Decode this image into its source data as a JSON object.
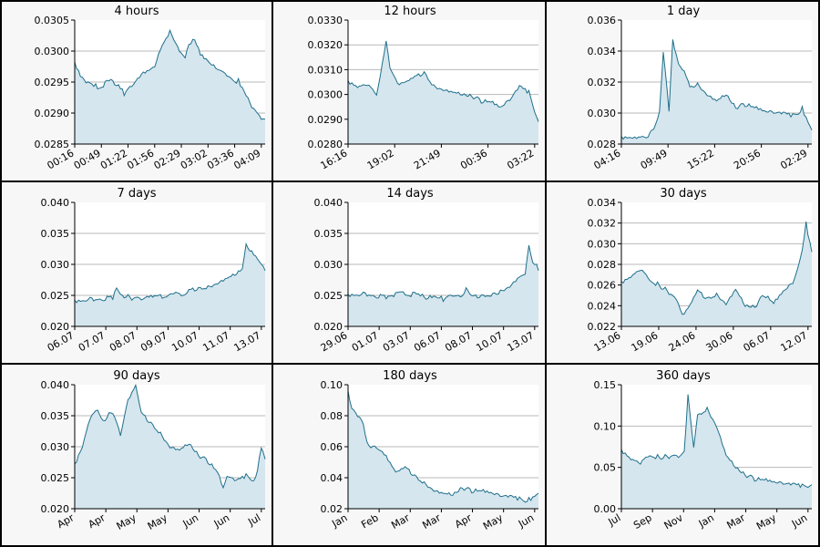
{
  "colors": {
    "line": "#1f6f8b",
    "fill": "#d5e6ee",
    "grid": "#b9b9b9",
    "panel_bg": "#f7f7f7",
    "plot_bg": "#ffffff",
    "text": "#000000"
  },
  "chart_data": [
    {
      "type": "area",
      "title": "4 hours",
      "ylim": [
        0.0285,
        0.0305
      ],
      "yticks": [
        "0.0285",
        "0.0290",
        "0.0295",
        "0.0300",
        "0.0305"
      ],
      "xticks": [
        "00:16",
        "00:49",
        "01:22",
        "01:56",
        "02:29",
        "03:02",
        "03:36",
        "04:09"
      ],
      "grid": true,
      "series": [
        {
          "x": [
            0,
            0.03,
            0.06,
            0.12,
            0.2,
            0.26,
            0.3,
            0.36,
            0.42,
            0.44,
            0.47,
            0.5,
            0.52,
            0.55,
            0.58,
            0.6,
            0.63,
            0.66,
            0.7,
            0.74,
            0.78,
            0.82,
            0.86,
            0.9,
            0.93,
            0.96,
            0.98,
            1.0
          ],
          "y": [
            0.0298,
            0.0296,
            0.0295,
            0.0294,
            0.0295,
            0.0293,
            0.0294,
            0.0296,
            0.0297,
            0.0299,
            0.0301,
            0.0303,
            0.0302,
            0.03,
            0.0299,
            0.0301,
            0.0302,
            0.0299,
            0.0298,
            0.0297,
            0.0296,
            0.0295,
            0.0295,
            0.0293,
            0.0291,
            0.029,
            0.0289,
            0.0289
          ]
        }
      ]
    },
    {
      "type": "area",
      "title": "12 hours",
      "ylim": [
        0.028,
        0.033
      ],
      "yticks": [
        "0.0280",
        "0.0290",
        "0.0300",
        "0.0310",
        "0.0320",
        "0.0330"
      ],
      "xticks": [
        "16:16",
        "19:02",
        "21:49",
        "00:36",
        "03:22"
      ],
      "grid": true,
      "series": [
        {
          "x": [
            0,
            0.05,
            0.1,
            0.15,
            0.18,
            0.2,
            0.22,
            0.26,
            0.3,
            0.35,
            0.4,
            0.45,
            0.5,
            0.55,
            0.6,
            0.65,
            0.7,
            0.75,
            0.8,
            0.85,
            0.9,
            0.95,
            1.0
          ],
          "y": [
            0.0305,
            0.0303,
            0.0304,
            0.03,
            0.0312,
            0.0322,
            0.031,
            0.0303,
            0.0304,
            0.0306,
            0.0308,
            0.0303,
            0.0302,
            0.0301,
            0.03,
            0.0299,
            0.0297,
            0.0296,
            0.0294,
            0.0297,
            0.0302,
            0.03,
            0.0289
          ]
        }
      ]
    },
    {
      "type": "area",
      "title": "1 day",
      "ylim": [
        0.028,
        0.036
      ],
      "yticks": [
        "0.028",
        "0.030",
        "0.032",
        "0.034",
        "0.036"
      ],
      "xticks": [
        "04:16",
        "09:49",
        "15:22",
        "20:56",
        "02:29"
      ],
      "grid": true,
      "series": [
        {
          "x": [
            0,
            0.08,
            0.14,
            0.17,
            0.2,
            0.22,
            0.25,
            0.27,
            0.3,
            0.33,
            0.36,
            0.4,
            0.45,
            0.5,
            0.55,
            0.6,
            0.65,
            0.7,
            0.75,
            0.8,
            0.85,
            0.9,
            0.95,
            1.0
          ],
          "y": [
            0.0284,
            0.0284,
            0.0285,
            0.029,
            0.03,
            0.034,
            0.03,
            0.0345,
            0.033,
            0.0325,
            0.0315,
            0.0318,
            0.0312,
            0.0308,
            0.0312,
            0.0303,
            0.0305,
            0.0302,
            0.03,
            0.0299,
            0.0298,
            0.0297,
            0.0302,
            0.0289
          ]
        }
      ]
    },
    {
      "type": "area",
      "title": "7 days",
      "ylim": [
        0.02,
        0.04
      ],
      "yticks": [
        "0.020",
        "0.025",
        "0.030",
        "0.035",
        "0.040"
      ],
      "xticks": [
        "06.07",
        "07.07",
        "08.07",
        "09.07",
        "10.07",
        "11.07",
        "13.07"
      ],
      "grid": true,
      "series": [
        {
          "x": [
            0,
            0.1,
            0.2,
            0.22,
            0.25,
            0.3,
            0.35,
            0.4,
            0.5,
            0.6,
            0.65,
            0.7,
            0.75,
            0.8,
            0.85,
            0.88,
            0.9,
            0.92,
            0.95,
            0.98,
            1.0
          ],
          "y": [
            0.024,
            0.0242,
            0.0245,
            0.0263,
            0.0248,
            0.0244,
            0.024,
            0.0244,
            0.0248,
            0.0254,
            0.0258,
            0.0262,
            0.027,
            0.0278,
            0.0285,
            0.0292,
            0.0335,
            0.0318,
            0.031,
            0.0298,
            0.029
          ]
        }
      ]
    },
    {
      "type": "area",
      "title": "14 days",
      "ylim": [
        0.02,
        0.04
      ],
      "yticks": [
        "0.020",
        "0.025",
        "0.030",
        "0.035",
        "0.040"
      ],
      "xticks": [
        "29.06",
        "01.07",
        "03.07",
        "06.07",
        "08.07",
        "10.07",
        "13.07"
      ],
      "grid": true,
      "series": [
        {
          "x": [
            0,
            0.1,
            0.2,
            0.3,
            0.4,
            0.5,
            0.55,
            0.6,
            0.62,
            0.65,
            0.7,
            0.8,
            0.85,
            0.9,
            0.93,
            0.95,
            0.97,
            1.0
          ],
          "y": [
            0.025,
            0.025,
            0.0246,
            0.0252,
            0.0245,
            0.0242,
            0.0246,
            0.0243,
            0.0258,
            0.0244,
            0.0246,
            0.0255,
            0.0265,
            0.028,
            0.0285,
            0.033,
            0.0305,
            0.029
          ]
        }
      ]
    },
    {
      "type": "area",
      "title": "30 days",
      "ylim": [
        0.022,
        0.034
      ],
      "yticks": [
        "0.022",
        "0.024",
        "0.026",
        "0.028",
        "0.030",
        "0.032",
        "0.034"
      ],
      "xticks": [
        "13.06",
        "19.06",
        "24.06",
        "30.06",
        "06.07",
        "12.07"
      ],
      "grid": true,
      "series": [
        {
          "x": [
            0,
            0.05,
            0.1,
            0.15,
            0.2,
            0.25,
            0.3,
            0.32,
            0.35,
            0.4,
            0.45,
            0.5,
            0.55,
            0.6,
            0.65,
            0.7,
            0.75,
            0.8,
            0.85,
            0.9,
            0.93,
            0.95,
            0.97,
            1.0
          ],
          "y": [
            0.0262,
            0.0268,
            0.0275,
            0.0265,
            0.0258,
            0.0252,
            0.024,
            0.0228,
            0.0235,
            0.0252,
            0.0245,
            0.025,
            0.0242,
            0.0256,
            0.024,
            0.0238,
            0.025,
            0.024,
            0.0252,
            0.026,
            0.0275,
            0.029,
            0.0318,
            0.0292
          ]
        }
      ]
    },
    {
      "type": "area",
      "title": "90 days",
      "ylim": [
        0.02,
        0.04
      ],
      "yticks": [
        "0.020",
        "0.025",
        "0.030",
        "0.035",
        "0.040"
      ],
      "xticks": [
        "Apr",
        "Apr",
        "May",
        "May",
        "Jun",
        "Jun",
        "Jul"
      ],
      "grid": true,
      "series": [
        {
          "x": [
            0,
            0.04,
            0.08,
            0.12,
            0.15,
            0.2,
            0.24,
            0.28,
            0.32,
            0.35,
            0.4,
            0.45,
            0.5,
            0.55,
            0.6,
            0.65,
            0.7,
            0.75,
            0.78,
            0.8,
            0.85,
            0.9,
            0.95,
            0.98,
            1.0
          ],
          "y": [
            0.027,
            0.03,
            0.0345,
            0.036,
            0.034,
            0.0355,
            0.0315,
            0.037,
            0.0395,
            0.035,
            0.0335,
            0.032,
            0.03,
            0.0295,
            0.0305,
            0.0285,
            0.0275,
            0.0255,
            0.023,
            0.025,
            0.024,
            0.025,
            0.0245,
            0.03,
            0.028
          ]
        }
      ]
    },
    {
      "type": "area",
      "title": "180 days",
      "ylim": [
        0.02,
        0.1
      ],
      "yticks": [
        "0.02",
        "0.04",
        "0.06",
        "0.08",
        "0.10"
      ],
      "xticks": [
        "Jan",
        "Feb",
        "Mar",
        "Mar",
        "Apr",
        "May",
        "Jun"
      ],
      "grid": true,
      "series": [
        {
          "x": [
            0,
            0.02,
            0.05,
            0.08,
            0.1,
            0.12,
            0.15,
            0.2,
            0.25,
            0.3,
            0.35,
            0.4,
            0.45,
            0.5,
            0.55,
            0.6,
            0.65,
            0.7,
            0.75,
            0.8,
            0.85,
            0.9,
            0.95,
            1.0
          ],
          "y": [
            0.095,
            0.085,
            0.08,
            0.075,
            0.062,
            0.06,
            0.058,
            0.052,
            0.042,
            0.045,
            0.04,
            0.036,
            0.032,
            0.03,
            0.029,
            0.033,
            0.031,
            0.03,
            0.029,
            0.027,
            0.026,
            0.025,
            0.025,
            0.03
          ]
        }
      ]
    },
    {
      "type": "area",
      "title": "360 days",
      "ylim": [
        0,
        0.15
      ],
      "yticks": [
        "0.00",
        "0.05",
        "0.10",
        "0.15"
      ],
      "xticks": [
        "Jul",
        "Sep",
        "Nov",
        "Jan",
        "Mar",
        "May",
        "Jun"
      ],
      "grid": true,
      "series": [
        {
          "x": [
            0,
            0.05,
            0.1,
            0.15,
            0.2,
            0.25,
            0.3,
            0.33,
            0.35,
            0.38,
            0.4,
            0.45,
            0.5,
            0.55,
            0.6,
            0.65,
            0.7,
            0.75,
            0.8,
            0.85,
            0.9,
            0.95,
            1.0
          ],
          "y": [
            0.07,
            0.06,
            0.055,
            0.065,
            0.06,
            0.062,
            0.06,
            0.065,
            0.135,
            0.07,
            0.11,
            0.12,
            0.1,
            0.065,
            0.05,
            0.04,
            0.035,
            0.032,
            0.03,
            0.028,
            0.026,
            0.025,
            0.029
          ]
        }
      ]
    }
  ]
}
